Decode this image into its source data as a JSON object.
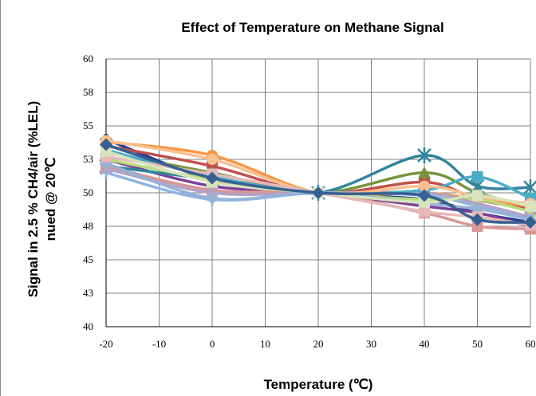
{
  "chart_data": {
    "type": "line",
    "title": "Effect of Temperature on Methane Signal",
    "xlabel": "Temperature (℃)",
    "ylabel_lines": [
      "Signal in 2.5 % CH4/air (%LEL)",
      "nued @ 20℃"
    ],
    "xlim": [
      -20,
      60
    ],
    "ylim": [
      40,
      60
    ],
    "x_ticks": [
      -20,
      -10,
      0,
      10,
      20,
      30,
      40,
      50,
      60
    ],
    "y_ticks": [
      40,
      42.5,
      45,
      47.5,
      50,
      52.5,
      55,
      57.5,
      60
    ],
    "y_tick_labels": [
      "40",
      "43",
      "45",
      "48",
      "50",
      "53",
      "55",
      "58",
      "60"
    ],
    "grid": true,
    "x": [
      -20,
      0,
      20,
      40,
      50,
      60
    ],
    "series": [
      {
        "color": "#1f3a93",
        "marker": "diamond",
        "values": [
          54.0,
          51.0,
          50.0,
          49.5,
          48.5,
          47.8
        ]
      },
      {
        "color": "#c0504d",
        "marker": "square",
        "values": [
          53.5,
          52.0,
          50.0,
          50.8,
          49.5,
          48.8
        ]
      },
      {
        "color": "#77933c",
        "marker": "triangle",
        "values": [
          53.0,
          51.5,
          50.0,
          51.5,
          50.0,
          49.0
        ]
      },
      {
        "color": "#7f3f98",
        "marker": "x",
        "values": [
          52.5,
          50.5,
          50.0,
          49.0,
          48.5,
          47.5
        ]
      },
      {
        "color": "#31859c",
        "marker": "star",
        "values": [
          52.0,
          51.0,
          50.0,
          52.8,
          50.5,
          50.4
        ]
      },
      {
        "color": "#f79646",
        "marker": "circle",
        "values": [
          53.8,
          52.8,
          50.0,
          50.0,
          49.5,
          49.0
        ]
      },
      {
        "color": "#8eb4e3",
        "marker": "plus",
        "values": [
          51.5,
          49.5,
          50.0,
          49.8,
          49.0,
          48.0
        ]
      },
      {
        "color": "#d99694",
        "marker": "square",
        "values": [
          52.0,
          50.2,
          50.0,
          48.5,
          47.5,
          47.3
        ]
      },
      {
        "color": "#b7dd7b",
        "marker": "triangle",
        "values": [
          52.5,
          51.0,
          50.0,
          49.5,
          49.5,
          48.6
        ]
      },
      {
        "color": "#b3a2c7",
        "marker": "x",
        "values": [
          51.8,
          50.0,
          50.0,
          50.0,
          49.2,
          48.2
        ]
      },
      {
        "color": "#4bacc6",
        "marker": "square",
        "values": [
          53.2,
          51.2,
          50.0,
          50.2,
          51.2,
          49.6
        ]
      },
      {
        "color": "#fac08f",
        "marker": "circle",
        "values": [
          53.9,
          52.5,
          50.0,
          50.5,
          49.7,
          49.2
        ]
      },
      {
        "color": "#95b3d7",
        "marker": "diamond",
        "values": [
          52.2,
          49.6,
          50.0,
          49.2,
          48.8,
          48.0
        ]
      },
      {
        "color": "#e6b9b8",
        "marker": "square",
        "values": [
          52.7,
          51.4,
          50.0,
          48.6,
          48.2,
          47.6
        ]
      },
      {
        "color": "#d7e4bd",
        "marker": "square",
        "values": [
          53.1,
          50.8,
          50.0,
          49.3,
          49.8,
          49.0
        ]
      },
      {
        "color": "#366092",
        "marker": "diamond",
        "values": [
          53.6,
          51.1,
          50.0,
          49.8,
          48.0,
          47.8
        ]
      }
    ]
  }
}
